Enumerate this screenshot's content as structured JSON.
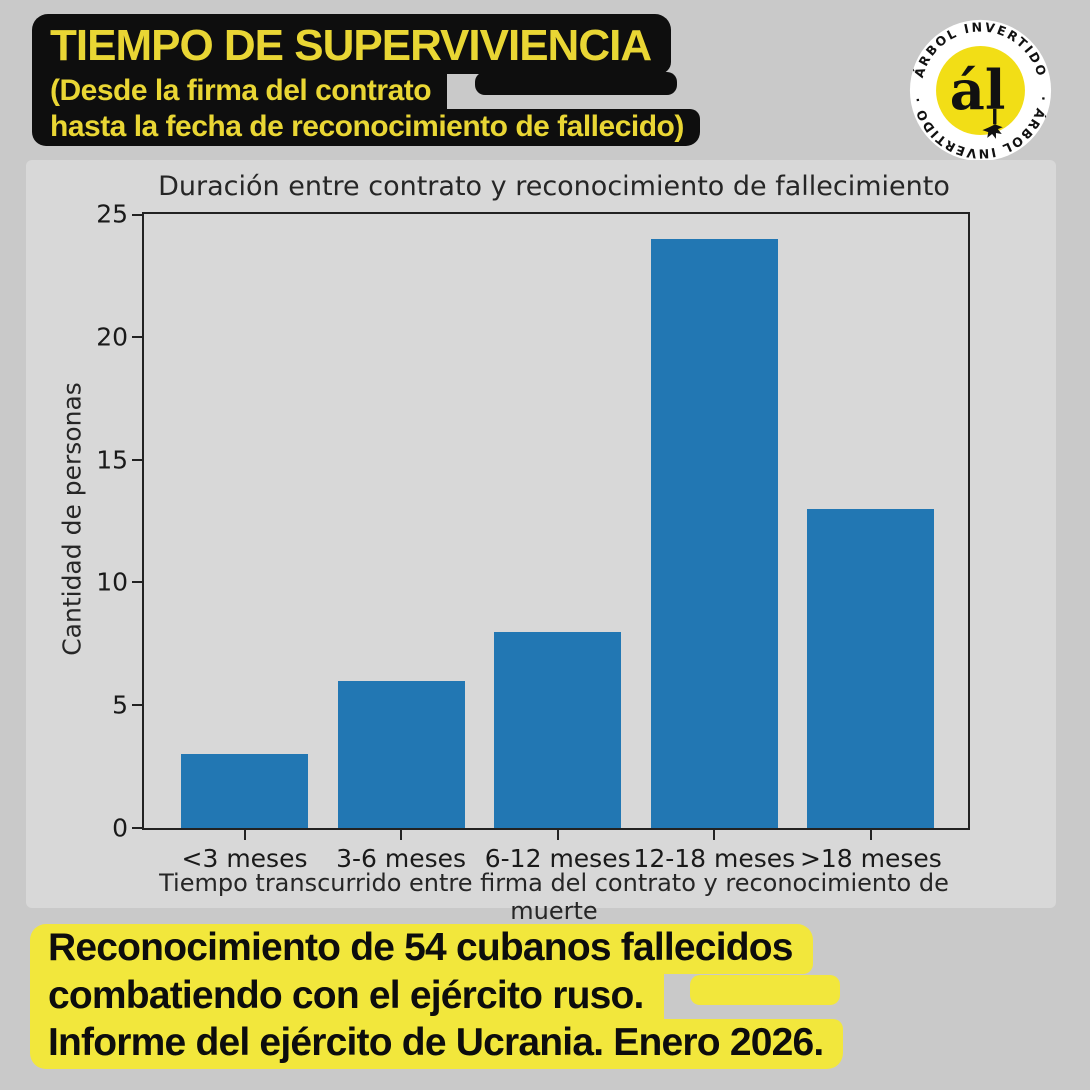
{
  "header": {
    "title": "TIEMPO DE SUPERVIVIENCIA",
    "subtitle_line1": "(Desde la firma del contrato",
    "subtitle_line2": "hasta la fecha de reconocimiento de fallecido)"
  },
  "logo": {
    "ring_text_top": "ÁRBOL INVERTIDO",
    "ring_text_bottom": "· ÁRBOL INVERTIDO ·",
    "monogram": "ál",
    "colors": {
      "ring_bg": "#ffffff",
      "inner_bg": "#f2de16",
      "text": "#111111"
    }
  },
  "chart_data": {
    "type": "bar",
    "title": "Duración entre contrato y reconocimiento de fallecimiento",
    "categories": [
      "<3 meses",
      "3-6 meses",
      "6-12 meses",
      "12-18 meses",
      ">18 meses"
    ],
    "values": [
      3,
      6,
      8,
      24,
      13
    ],
    "xlabel": "Tiempo transcurrido entre firma del contrato y reconocimiento de muerte",
    "ylabel": "Cantidad de personas",
    "ylim": [
      0,
      25
    ],
    "yticks": [
      0,
      5,
      10,
      15,
      20,
      25
    ],
    "bar_color": "#2277b3",
    "plot_background": "#d8d8d8",
    "grid": false,
    "legend": false
  },
  "caption": {
    "line1": "Reconocimiento de 54 cubanos fallecidos",
    "line2": "combatiendo con el ejército ruso.",
    "line3": "Informe del ejército de Ucrania. Enero 2026."
  },
  "colors": {
    "page_background": "#c9c9c9",
    "figure_background": "#d8d8d8",
    "highlight_yellow": "#f2e73c",
    "title_yellow": "#e9d634",
    "box_black": "#0e0e0e",
    "axis_black": "#222222"
  }
}
